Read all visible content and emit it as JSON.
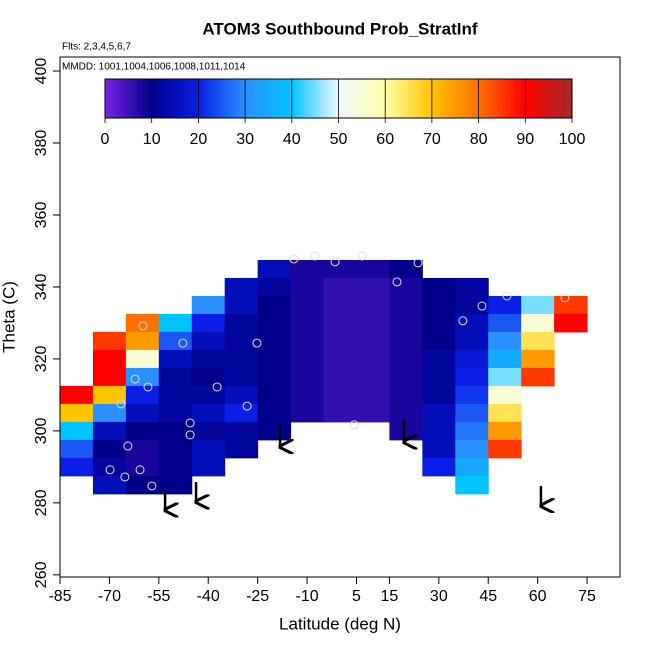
{
  "chart_data": {
    "type": "heatmap",
    "title": "ATOM3 Southbound Prob_StratInf",
    "subtitle": "Flts: 2,3,4,5,6,7",
    "annotation": "MMDD: 1001,1004,1006,1008,1011,1014",
    "x_label": "Latitude (deg N)",
    "y_label": "Theta (C)",
    "xlim": [
      -85,
      85
    ],
    "ylim": [
      259.4,
      403.9
    ],
    "xticks": [
      -85,
      -70,
      -55,
      -40,
      -25,
      -10,
      5,
      15,
      30,
      45,
      60,
      75
    ],
    "yticks": [
      260,
      280,
      300,
      320,
      340,
      360,
      380,
      400
    ],
    "x": [
      -80,
      -70,
      -60,
      -50,
      -40,
      -30,
      -20,
      -10,
      0,
      10,
      20,
      30,
      40,
      50,
      60,
      70
    ],
    "y": [
      345,
      340,
      335,
      330,
      325,
      320,
      315,
      310,
      305,
      300,
      295,
      290,
      285
    ],
    "z": [
      [
        null,
        null,
        null,
        null,
        null,
        null,
        15,
        8,
        8,
        8,
        10,
        null,
        null,
        null,
        null,
        null
      ],
      [
        null,
        null,
        null,
        null,
        null,
        15,
        12,
        8,
        6,
        6,
        8,
        10,
        12,
        null,
        null,
        null
      ],
      [
        null,
        null,
        null,
        null,
        30,
        15,
        10,
        8,
        6,
        6,
        8,
        10,
        12,
        20,
        45,
        85
      ],
      [
        null,
        null,
        80,
        40,
        20,
        12,
        10,
        8,
        6,
        6,
        8,
        10,
        15,
        25,
        55,
        90
      ],
      [
        null,
        85,
        75,
        25,
        15,
        12,
        10,
        8,
        6,
        6,
        8,
        10,
        15,
        30,
        65,
        null
      ],
      [
        null,
        90,
        55,
        15,
        12,
        12,
        10,
        8,
        6,
        6,
        8,
        12,
        18,
        35,
        75,
        null
      ],
      [
        null,
        90,
        30,
        12,
        10,
        12,
        10,
        8,
        6,
        6,
        8,
        12,
        20,
        45,
        85,
        null
      ],
      [
        90,
        70,
        20,
        12,
        12,
        15,
        10,
        8,
        6,
        6,
        8,
        12,
        22,
        55,
        null,
        null
      ],
      [
        70,
        30,
        15,
        12,
        15,
        20,
        10,
        8,
        6,
        6,
        8,
        15,
        25,
        65,
        null,
        null
      ],
      [
        40,
        15,
        10,
        10,
        12,
        12,
        10,
        null,
        null,
        null,
        8,
        15,
        28,
        75,
        null,
        null
      ],
      [
        25,
        10,
        8,
        10,
        15,
        12,
        null,
        null,
        null,
        null,
        null,
        15,
        30,
        85,
        null,
        null
      ],
      [
        20,
        12,
        8,
        10,
        15,
        null,
        null,
        null,
        null,
        null,
        null,
        20,
        35,
        null,
        null,
        null
      ],
      [
        null,
        15,
        10,
        10,
        null,
        null,
        null,
        null,
        null,
        null,
        null,
        null,
        40,
        null,
        null,
        null
      ]
    ],
    "colorscale": [
      [
        0,
        "#7b22e6"
      ],
      [
        10,
        "#00008b"
      ],
      [
        20,
        "#0a1ee6"
      ],
      [
        30,
        "#2a90ff"
      ],
      [
        40,
        "#00c4ff"
      ],
      [
        50,
        "#f0f8ff"
      ],
      [
        60,
        "#ffffa8"
      ],
      [
        70,
        "#ffc400"
      ],
      [
        80,
        "#ff7000"
      ],
      [
        90,
        "#ff0000"
      ],
      [
        100,
        "#a52a2a"
      ]
    ],
    "colorbar_ticks": [
      0,
      10,
      20,
      30,
      40,
      50,
      60,
      70,
      80,
      90,
      100
    ],
    "points": {
      "x": [
        -14,
        -7.6,
        -1.5,
        6.7,
        17.3,
        23.7,
        37.3,
        43.1,
        50.7,
        68.3,
        -59.8,
        -47.7,
        -25.2,
        -62.2,
        -58.3,
        -37.3,
        -66.5,
        -28.2,
        -45.5,
        -45.5,
        4.3,
        -64.4,
        -69.8,
        -60.7,
        -65.3,
        -57.1
      ],
      "y": [
        347.8,
        348.6,
        347,
        348.6,
        341.4,
        346.7,
        330.6,
        334.7,
        337.5,
        337,
        329.2,
        324.4,
        324.4,
        314.4,
        312.2,
        312.2,
        307.5,
        306.9,
        302.2,
        298.9,
        301.7,
        295.8,
        289.2,
        289.2,
        287.2,
        284.7
      ]
    },
    "arrows": [
      {
        "x": -53.1,
        "y": [
          283.6,
          278
        ]
      },
      {
        "x": -43.7,
        "y": [
          285.8,
          280.3
        ]
      },
      {
        "x": -18.2,
        "y": [
          301.7,
          295.6
        ]
      },
      {
        "x": 19.4,
        "y": [
          303,
          296.9
        ]
      },
      {
        "x": 61,
        "y": [
          284.7,
          279.2
        ]
      }
    ]
  }
}
